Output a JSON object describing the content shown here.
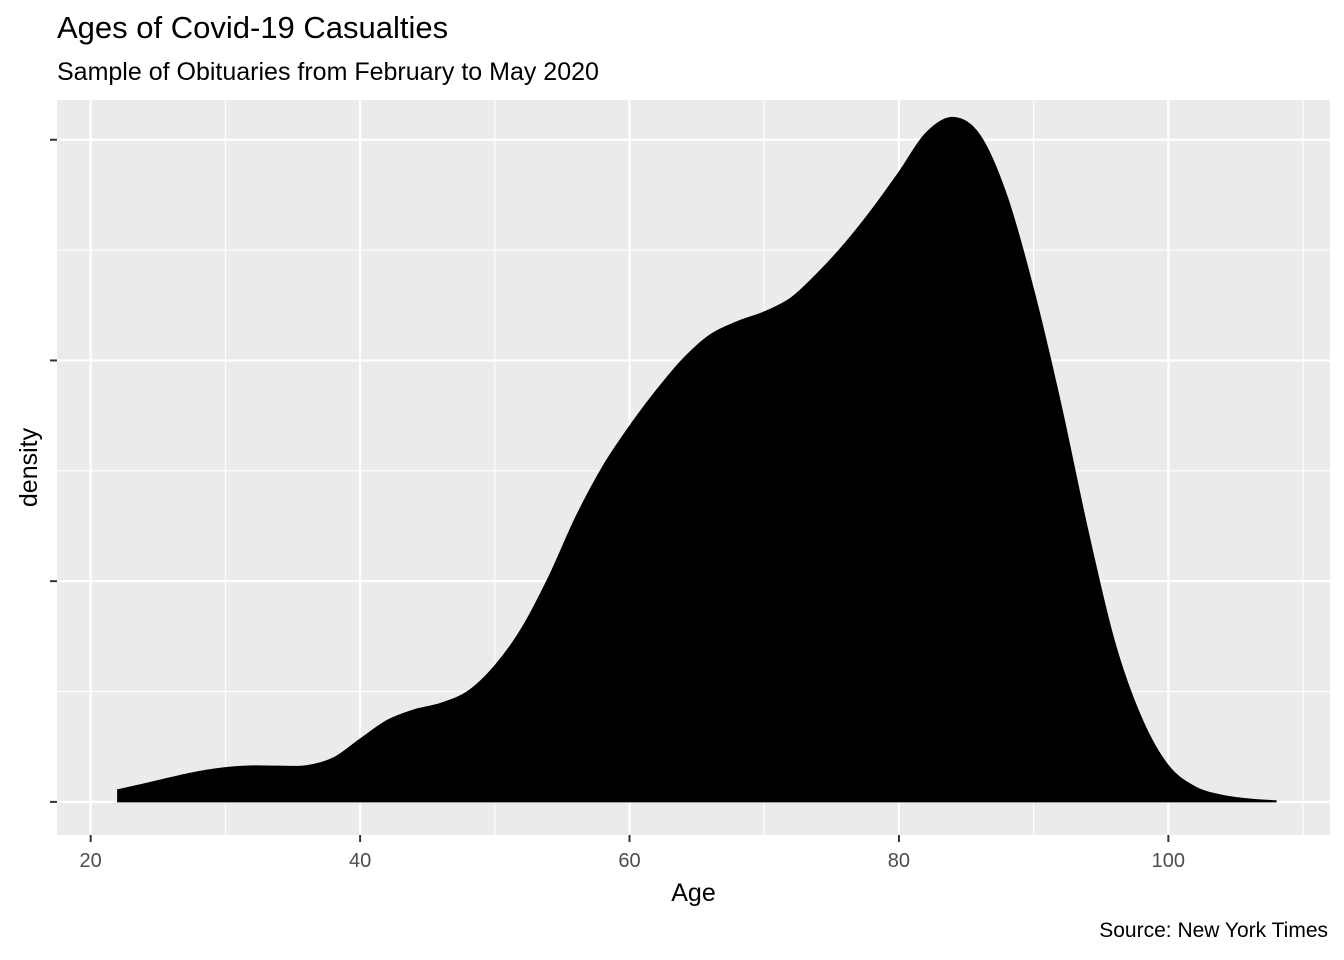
{
  "chart_data": {
    "type": "area",
    "title": "Ages of Covid-19 Casualties",
    "subtitle": "Sample of Obituaries from February to May 2020",
    "caption": "Source: New York Times",
    "xlabel": "Age",
    "ylabel": "density",
    "x_ticks": [
      20,
      40,
      60,
      80,
      100
    ],
    "x_tick_labels": [
      "20",
      "40",
      "60",
      "80",
      "100"
    ],
    "xlim": [
      17.5,
      112
    ],
    "ylim": [
      -0.0015,
      0.0318
    ],
    "y_ticks": [
      0,
      0.01,
      0.02,
      0.03
    ],
    "y_tick_labels": [
      "",
      "",
      "",
      ""
    ],
    "y_tick_labels_hidden": true,
    "grid": true,
    "panel_background": "#EBEBEB",
    "grid_color": "#FFFFFF",
    "fill_color": "#000000",
    "series": [
      {
        "x": [
          22,
          24,
          26,
          28,
          30,
          32,
          34,
          36,
          38,
          40,
          42,
          44,
          46,
          48,
          50,
          52,
          54,
          56,
          58,
          60,
          62,
          64,
          66,
          68,
          70,
          72,
          74,
          76,
          78,
          80,
          82,
          84,
          86,
          88,
          90,
          92,
          94,
          96,
          98,
          100,
          102,
          104,
          106,
          108
        ],
        "y": [
          0.00055,
          0.00082,
          0.00111,
          0.00137,
          0.00155,
          0.00163,
          0.00162,
          0.00164,
          0.00199,
          0.00285,
          0.00369,
          0.00417,
          0.00447,
          0.00501,
          0.00617,
          0.00787,
          0.01019,
          0.01289,
          0.01518,
          0.01702,
          0.01865,
          0.02009,
          0.02117,
          0.02176,
          0.0222,
          0.02284,
          0.02398,
          0.02531,
          0.02684,
          0.02853,
          0.0303,
          0.03101,
          0.03022,
          0.02749,
          0.02321,
          0.01808,
          0.01238,
          0.00728,
          0.00382,
          0.00165,
          0.00068,
          0.0003,
          0.00013,
          5e-05
        ]
      }
    ]
  }
}
